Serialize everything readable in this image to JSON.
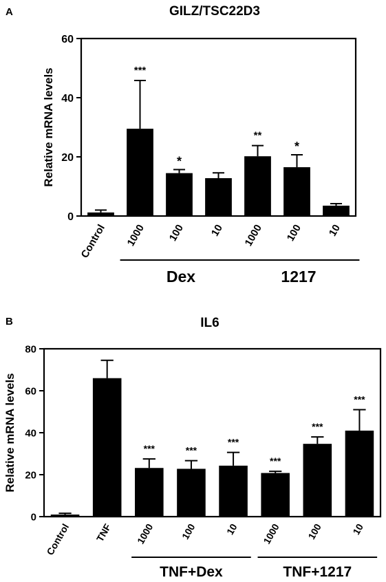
{
  "chart_data": [
    {
      "panel_label": "A",
      "type": "bar",
      "title": "GILZ/TSC22D3",
      "xlabel": "",
      "ylabel": "Relative mRNA levels",
      "ylim": [
        0,
        60
      ],
      "yticks": [
        0,
        20,
        40,
        60
      ],
      "categories": [
        "Control",
        "1000",
        "100",
        "10",
        "1000",
        "100",
        "10"
      ],
      "values": [
        1.2,
        29.5,
        14.5,
        12.8,
        20.2,
        16.5,
        3.5
      ],
      "errors": [
        0.8,
        16.3,
        1.2,
        1.8,
        3.6,
        4.2,
        0.7
      ],
      "significance": [
        "",
        "***",
        "*",
        "",
        "**",
        "*",
        ""
      ],
      "groups": [
        {
          "label": "Dex",
          "start": 1,
          "end": 3
        },
        {
          "label": "1217",
          "start": 4,
          "end": 6
        }
      ],
      "bar_color": "#000000"
    },
    {
      "panel_label": "B",
      "type": "bar",
      "title": "IL6",
      "xlabel": "",
      "ylabel": "Relative mRNA levels",
      "ylim": [
        0,
        80
      ],
      "yticks": [
        0,
        20,
        40,
        60,
        80
      ],
      "categories": [
        "Control",
        "TNF",
        "1000",
        "100",
        "10",
        "1000",
        "100",
        "10"
      ],
      "values": [
        1.0,
        66.0,
        23.2,
        22.8,
        24.3,
        20.8,
        34.7,
        41.0
      ],
      "errors": [
        0.6,
        8.5,
        4.3,
        3.9,
        6.3,
        0.8,
        3.3,
        10.0
      ],
      "significance": [
        "",
        "",
        "***",
        "***",
        "***",
        "***",
        "***",
        "***"
      ],
      "groups": [
        {
          "label": "TNF+Dex",
          "start": 2,
          "end": 4
        },
        {
          "label": "TNF+1217",
          "start": 5,
          "end": 7
        }
      ],
      "bar_color": "#000000"
    }
  ]
}
